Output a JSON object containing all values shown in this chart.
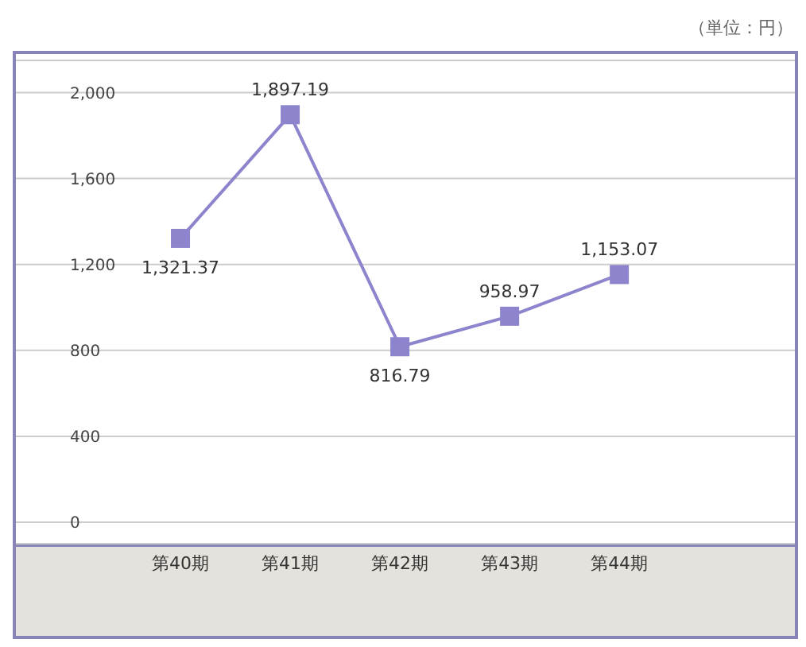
{
  "chart_data": {
    "type": "line",
    "categories": [
      "第40期",
      "第41期",
      "第42期",
      "第43期",
      "第44期"
    ],
    "series": [
      {
        "color": "#8c84cc",
        "values": [
          1321.37,
          1897.19,
          816.79,
          958.97,
          1153.07
        ],
        "value_labels": [
          "1,321.37",
          "1,897.19",
          "816.79",
          "958.97",
          "1,153.07"
        ]
      }
    ],
    "ylim": [
      -100,
      2150
    ],
    "yticks": [
      {
        "value": 0,
        "label": "0"
      },
      {
        "value": 400,
        "label": "400"
      },
      {
        "value": 800,
        "label": "800"
      },
      {
        "value": 1200,
        "label": "1,200"
      },
      {
        "value": 1600,
        "label": "1,600"
      },
      {
        "value": 2000,
        "label": "2,000"
      }
    ],
    "grid": "y",
    "marker": "square",
    "annotations": [
      "（単位：円）"
    ]
  }
}
